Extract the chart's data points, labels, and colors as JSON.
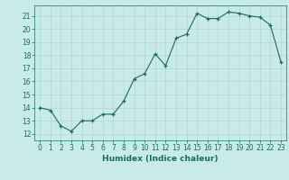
{
  "x": [
    0,
    1,
    2,
    3,
    4,
    5,
    6,
    7,
    8,
    9,
    10,
    11,
    12,
    13,
    14,
    15,
    16,
    17,
    18,
    19,
    20,
    21,
    22,
    23
  ],
  "y": [
    14.0,
    13.8,
    12.6,
    12.2,
    13.0,
    13.0,
    13.5,
    13.5,
    14.5,
    16.2,
    16.6,
    18.1,
    17.2,
    19.3,
    19.6,
    21.2,
    20.8,
    20.8,
    21.3,
    21.2,
    21.0,
    20.9,
    20.3,
    17.5
  ],
  "xlabel": "Humidex (Indice chaleur)",
  "ylim": [
    11.5,
    21.8
  ],
  "xlim": [
    -0.5,
    23.5
  ],
  "yticks": [
    12,
    13,
    14,
    15,
    16,
    17,
    18,
    19,
    20,
    21
  ],
  "xticks": [
    0,
    1,
    2,
    3,
    4,
    5,
    6,
    7,
    8,
    9,
    10,
    11,
    12,
    13,
    14,
    15,
    16,
    17,
    18,
    19,
    20,
    21,
    22,
    23
  ],
  "line_color": "#1a6b5a",
  "marker_color": "#1a6b5a",
  "bg_color": "#c8eae8",
  "grid_color": "#afd6d2",
  "tick_label_color": "#1a6b5a",
  "xlabel_color": "#1a6b5a",
  "tick_fontsize": 5.5,
  "label_fontsize": 6.5
}
